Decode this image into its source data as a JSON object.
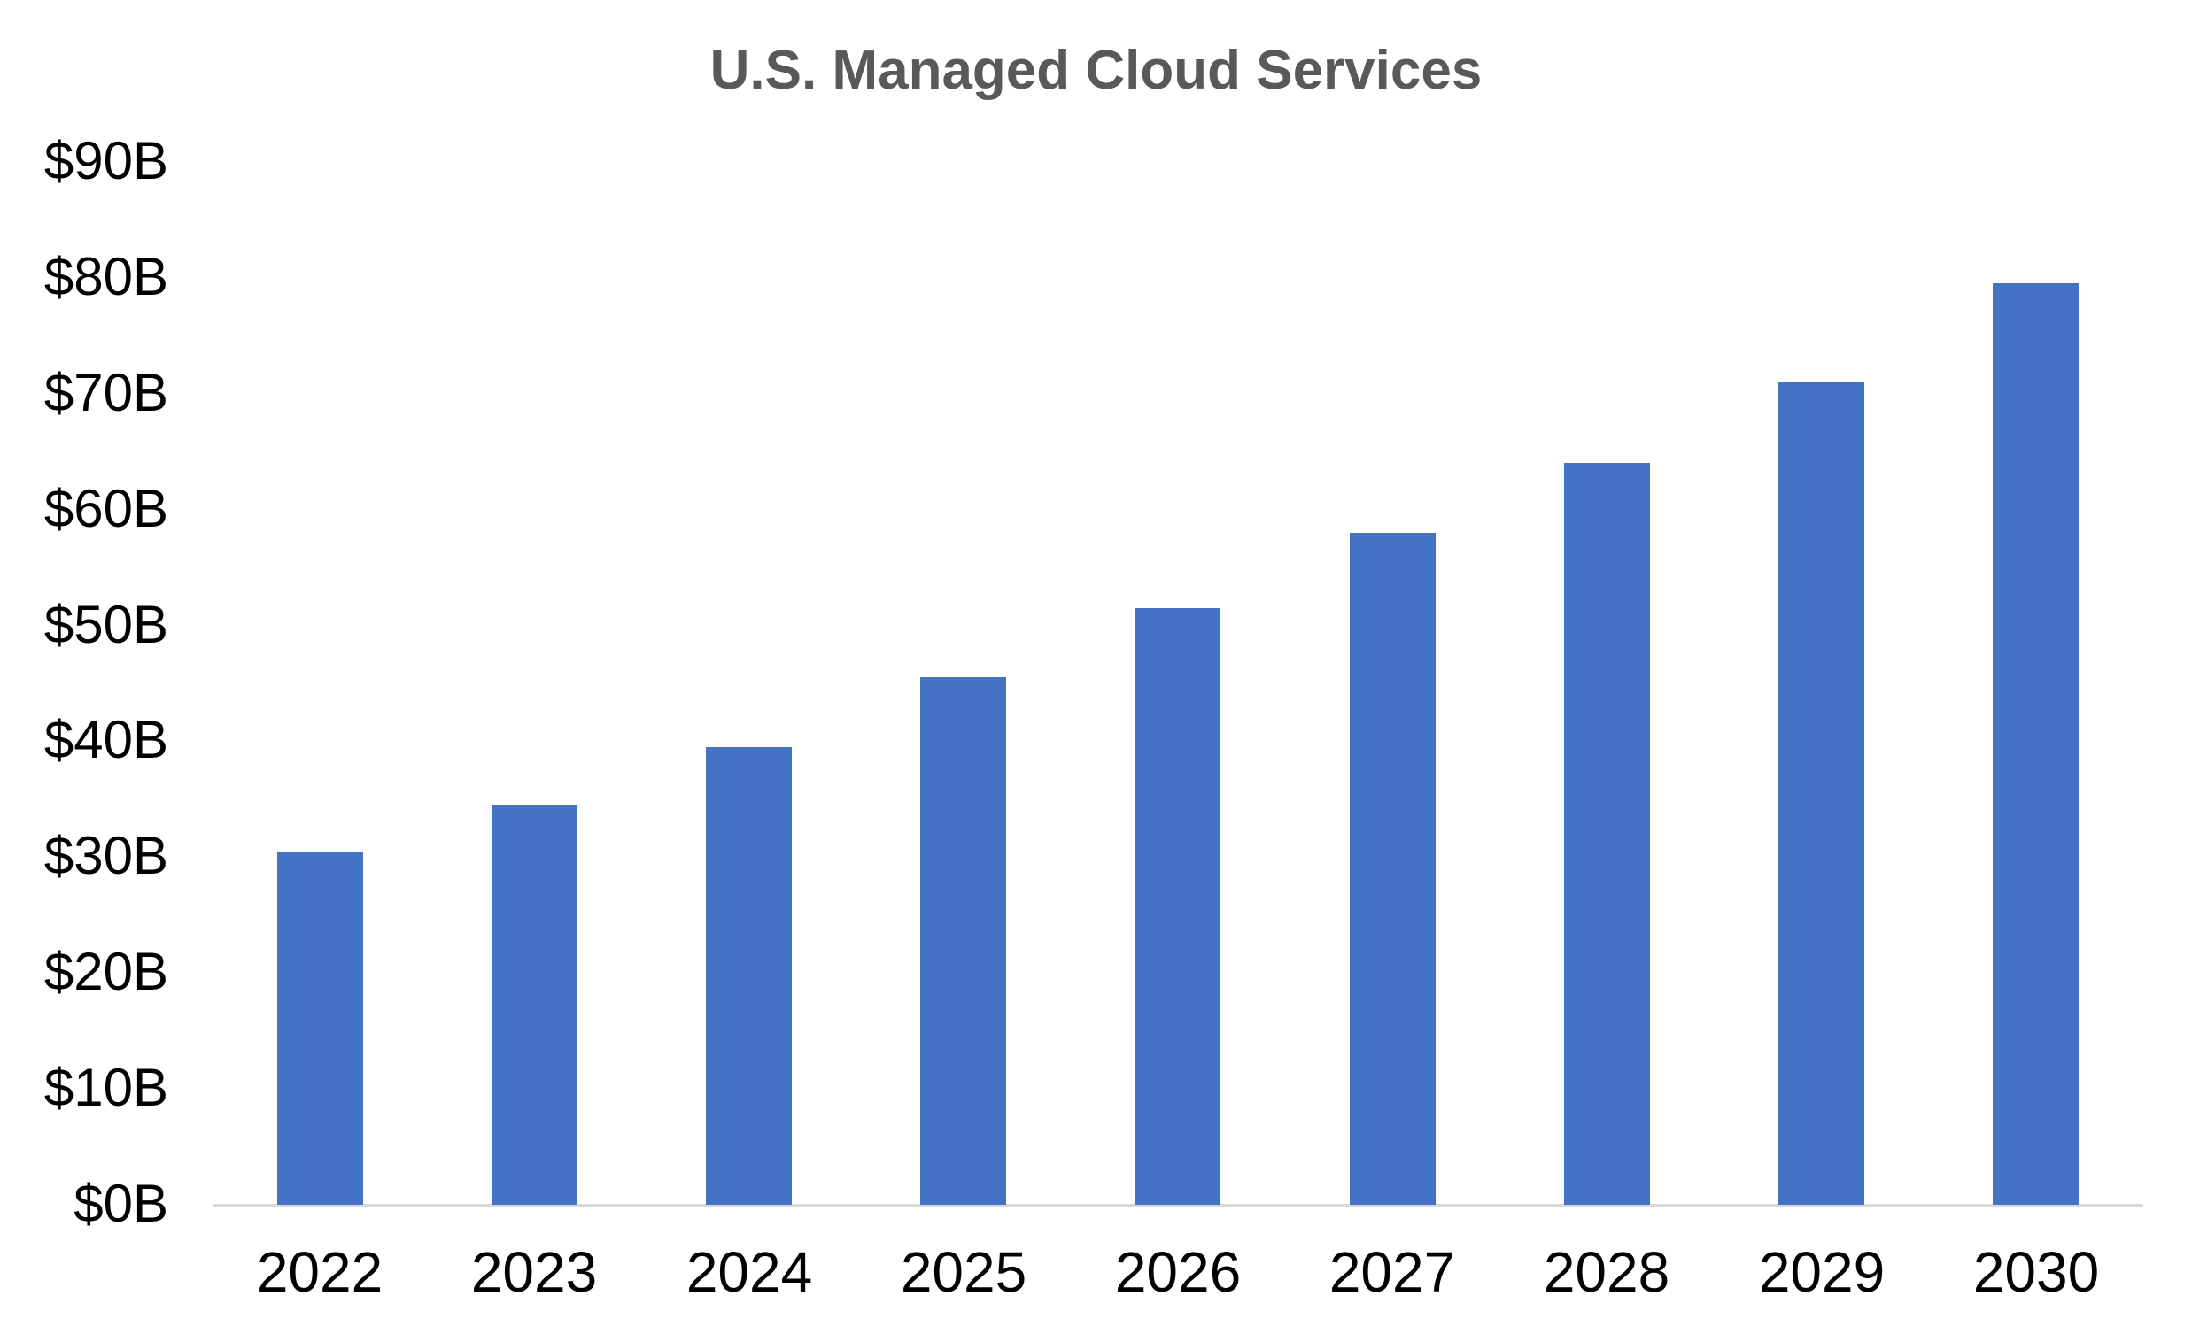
{
  "chart_data": {
    "type": "bar",
    "title": "U.S. Managed Cloud Services",
    "categories": [
      "2022",
      "2023",
      "2024",
      "2025",
      "2026",
      "2027",
      "2028",
      "2029",
      "2030"
    ],
    "values": [
      30.5,
      34.5,
      39.5,
      45.5,
      51.5,
      58,
      64,
      71,
      79.5
    ],
    "unit": "USD billions",
    "xlabel": "",
    "ylabel": "",
    "ylim": [
      0,
      90
    ],
    "y_tick_labels": [
      "$0B",
      "$10B",
      "$20B",
      "$30B",
      "$40B",
      "$50B",
      "$60B",
      "$70B",
      "$80B",
      "$90B"
    ],
    "y_tick_values": [
      0,
      10,
      20,
      30,
      40,
      50,
      60,
      70,
      80,
      90
    ],
    "grid": false,
    "legend_position": "none",
    "bar_color": "#4472C4",
    "title_color": "#595959",
    "axis_line_color": "#D9D9D9",
    "tick_label_color": "#000000"
  }
}
